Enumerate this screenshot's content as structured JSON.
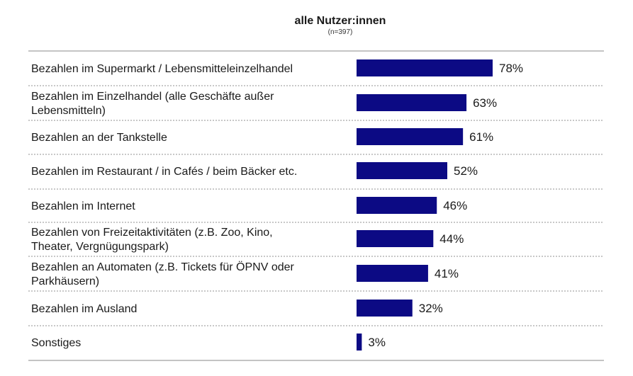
{
  "chart_data": {
    "type": "bar",
    "orientation": "horizontal",
    "title": "alle Nutzer:innen",
    "subtitle": "(n=397)",
    "unit": "%",
    "bar_color": "#0c0a84",
    "categories": [
      [
        "Bezahlen im Supermarkt / Lebensmitteleinzelhandel"
      ],
      [
        "Bezahlen im Einzelhandel (alle Geschäfte außer",
        "Lebensmitteln)"
      ],
      [
        "Bezahlen an der Tankstelle"
      ],
      [
        "Bezahlen im Restaurant / in Cafés / beim Bäcker etc."
      ],
      [
        "Bezahlen im Internet"
      ],
      [
        "Bezahlen von Freizeitaktivitäten (z.B. Zoo, Kino,",
        "Theater, Vergnügungspark)"
      ],
      [
        "Bezahlen an Automaten (z.B. Tickets für ÖPNV oder",
        "Parkhäusern)"
      ],
      [
        "Bezahlen im Ausland"
      ],
      [
        "Sonstiges"
      ]
    ],
    "values": [
      78,
      63,
      61,
      52,
      46,
      44,
      41,
      32,
      3
    ],
    "value_labels": [
      "78%",
      "63%",
      "61%",
      "52%",
      "46%",
      "44%",
      "41%",
      "32%",
      "3%"
    ],
    "xlim": [
      0,
      100
    ],
    "grid": false,
    "legend": "none"
  }
}
